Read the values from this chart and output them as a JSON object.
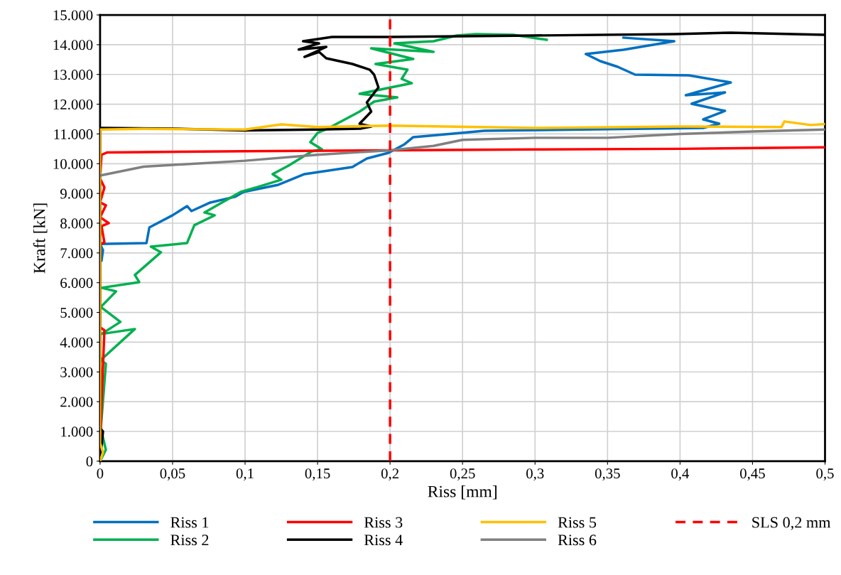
{
  "chart_data": {
    "type": "line",
    "xlabel": "Riss [mm]",
    "ylabel": "Kraft [kN]",
    "xlim": [
      0,
      0.5
    ],
    "ylim": [
      0,
      15000
    ],
    "xticks": [
      {
        "value": 0,
        "label": "0"
      },
      {
        "value": 0.05,
        "label": "0,05"
      },
      {
        "value": 0.1,
        "label": "0,1"
      },
      {
        "value": 0.15,
        "label": "0,15"
      },
      {
        "value": 0.2,
        "label": "0,2"
      },
      {
        "value": 0.25,
        "label": "0,25"
      },
      {
        "value": 0.3,
        "label": "0,3"
      },
      {
        "value": 0.35,
        "label": "0,35"
      },
      {
        "value": 0.4,
        "label": "0,4"
      },
      {
        "value": 0.45,
        "label": "0,45"
      },
      {
        "value": 0.5,
        "label": "0,5"
      }
    ],
    "yticks": [
      0,
      {
        "value": 1000,
        "label": "1.000"
      },
      {
        "value": 2000,
        "label": "2.000"
      },
      {
        "value": 3000,
        "label": "3.000"
      },
      {
        "value": 4000,
        "label": "4.000"
      },
      {
        "value": 5000,
        "label": "5.000"
      },
      {
        "value": 6000,
        "label": "6.000"
      },
      {
        "value": 7000,
        "label": "7.000"
      },
      {
        "value": 8000,
        "label": "8.000"
      },
      {
        "value": 9000,
        "label": "9.000"
      },
      {
        "value": 10000,
        "label": "10.000"
      },
      {
        "value": 11000,
        "label": "11.000"
      },
      {
        "value": 12000,
        "label": "12.000"
      },
      {
        "value": 13000,
        "label": "13.000"
      },
      {
        "value": 14000,
        "label": "14.000"
      },
      {
        "value": 15000,
        "label": "15.000"
      }
    ],
    "grid": true,
    "legend": "bottom",
    "marker": "none",
    "line_style": "solid",
    "series": [
      {
        "name": "Riss 1",
        "color": "#0070c0",
        "x": [
          0,
          0.001,
          0.002,
          0,
          0.032,
          0.034,
          0.05,
          0.06,
          0.063,
          0.076,
          0.093,
          0.099,
          0.123,
          0.141,
          0.174,
          0.184,
          0.199,
          0.21,
          0.216,
          0.249,
          0.265,
          0.416,
          0.427,
          0.416,
          0.431,
          0.408,
          0.431,
          0.404,
          0.435,
          0.406,
          0.369,
          0.357,
          0.345,
          0.335,
          0.361,
          0.396,
          0.361
        ],
        "values": [
          6800,
          6735,
          7094,
          7300,
          7330,
          7858,
          8265,
          8575,
          8407,
          8694,
          8886,
          9053,
          9292,
          9650,
          9889,
          10175,
          10366,
          10653,
          10892,
          11035,
          11107,
          11202,
          11345,
          11489,
          11775,
          12014,
          12396,
          12300,
          12731,
          12970,
          12994,
          13256,
          13448,
          13686,
          13830,
          14117,
          14236
        ]
      },
      {
        "name": "Riss 2",
        "color": "#00b050",
        "x": [
          0,
          0.004,
          0.0005,
          0.004,
          0.0005,
          0.024,
          0.001,
          0.014,
          0.0005,
          0.011,
          0.001,
          0.027,
          0.024,
          0.042,
          0.035,
          0.06,
          0.065,
          0.079,
          0.072,
          0.097,
          0.109,
          0.125,
          0.119,
          0.13,
          0.146,
          0.153,
          0.145,
          0.15,
          0.156,
          0.179,
          0.189,
          0.205,
          0.179,
          0.215,
          0.208,
          0.212,
          0.19,
          0.216,
          0.187,
          0.23,
          0.203,
          0.23,
          0.246,
          0.259,
          0.285,
          0.308
        ],
        "values": [
          0,
          382,
          1099,
          3272,
          3400,
          4443,
          4275,
          4681,
          5183,
          5708,
          5828,
          6019,
          6258,
          7022,
          7213,
          7333,
          7930,
          8264,
          8360,
          9053,
          9220,
          9459,
          9650,
          9937,
          10414,
          10486,
          10725,
          11035,
          11154,
          11751,
          12086,
          12229,
          12349,
          12707,
          12850,
          13160,
          13352,
          13519,
          13877,
          13758,
          14045,
          14117,
          14308,
          14355,
          14331,
          14165
        ]
      },
      {
        "name": "Riss 3",
        "color": "#ff0000",
        "x": [
          0,
          0.001,
          0.003,
          0,
          0,
          0.003,
          0.001,
          0.006,
          0,
          0.004,
          0,
          0.003,
          0,
          0.001,
          0.005,
          0.1,
          0.2,
          0.3,
          0.4,
          0.5
        ],
        "values": [
          0,
          2000,
          4400,
          4500,
          7300,
          7350,
          7900,
          8000,
          8200,
          8600,
          8700,
          9200,
          9500,
          10300,
          10380,
          10420,
          10450,
          10480,
          10500,
          10550
        ]
      },
      {
        "name": "Riss 4",
        "color": "#000000",
        "x": [
          0,
          0.002,
          0,
          0,
          0.05,
          0.1,
          0.15,
          0.18,
          0.187,
          0.179,
          0.187,
          0.184,
          0.192,
          0.189,
          0.186,
          0.174,
          0.156,
          0.151,
          0.141,
          0.156,
          0.137,
          0.151,
          0.14,
          0.16,
          0.2,
          0.298,
          0.396,
          0.435,
          0.5
        ],
        "values": [
          0,
          1000,
          1100,
          11200,
          11180,
          11120,
          11150,
          11180,
          11250,
          11345,
          11751,
          12062,
          12564,
          12994,
          13160,
          13352,
          13543,
          13758,
          13591,
          13925,
          13837,
          14045,
          14117,
          14260,
          14260,
          14308,
          14355,
          14403,
          14331
        ]
      },
      {
        "name": "Riss 5",
        "color": "#ffc000",
        "x": [
          0,
          0.002,
          0,
          0,
          0.03,
          0.1,
          0.125,
          0.15,
          0.2,
          0.3,
          0.4,
          0.47,
          0.472,
          0.49,
          0.5
        ],
        "values": [
          0,
          300,
          600,
          11150,
          11170,
          11150,
          11320,
          11230,
          11280,
          11200,
          11250,
          11230,
          11420,
          11300,
          11330
        ]
      },
      {
        "name": "Riss 6",
        "color": "#808080",
        "x": [
          0,
          0.03,
          0.1,
          0.15,
          0.2,
          0.23,
          0.25,
          0.3,
          0.35,
          0.4,
          0.45,
          0.5
        ],
        "values": [
          9600,
          9900,
          10100,
          10300,
          10450,
          10600,
          10800,
          10870,
          10870,
          11000,
          11080,
          11150
        ]
      }
    ],
    "ref_lines": [
      {
        "axis": "x",
        "value": 0.2,
        "label": "SLS 0,2 mm",
        "color": "#ff0000",
        "line_style": "dashed"
      }
    ]
  }
}
